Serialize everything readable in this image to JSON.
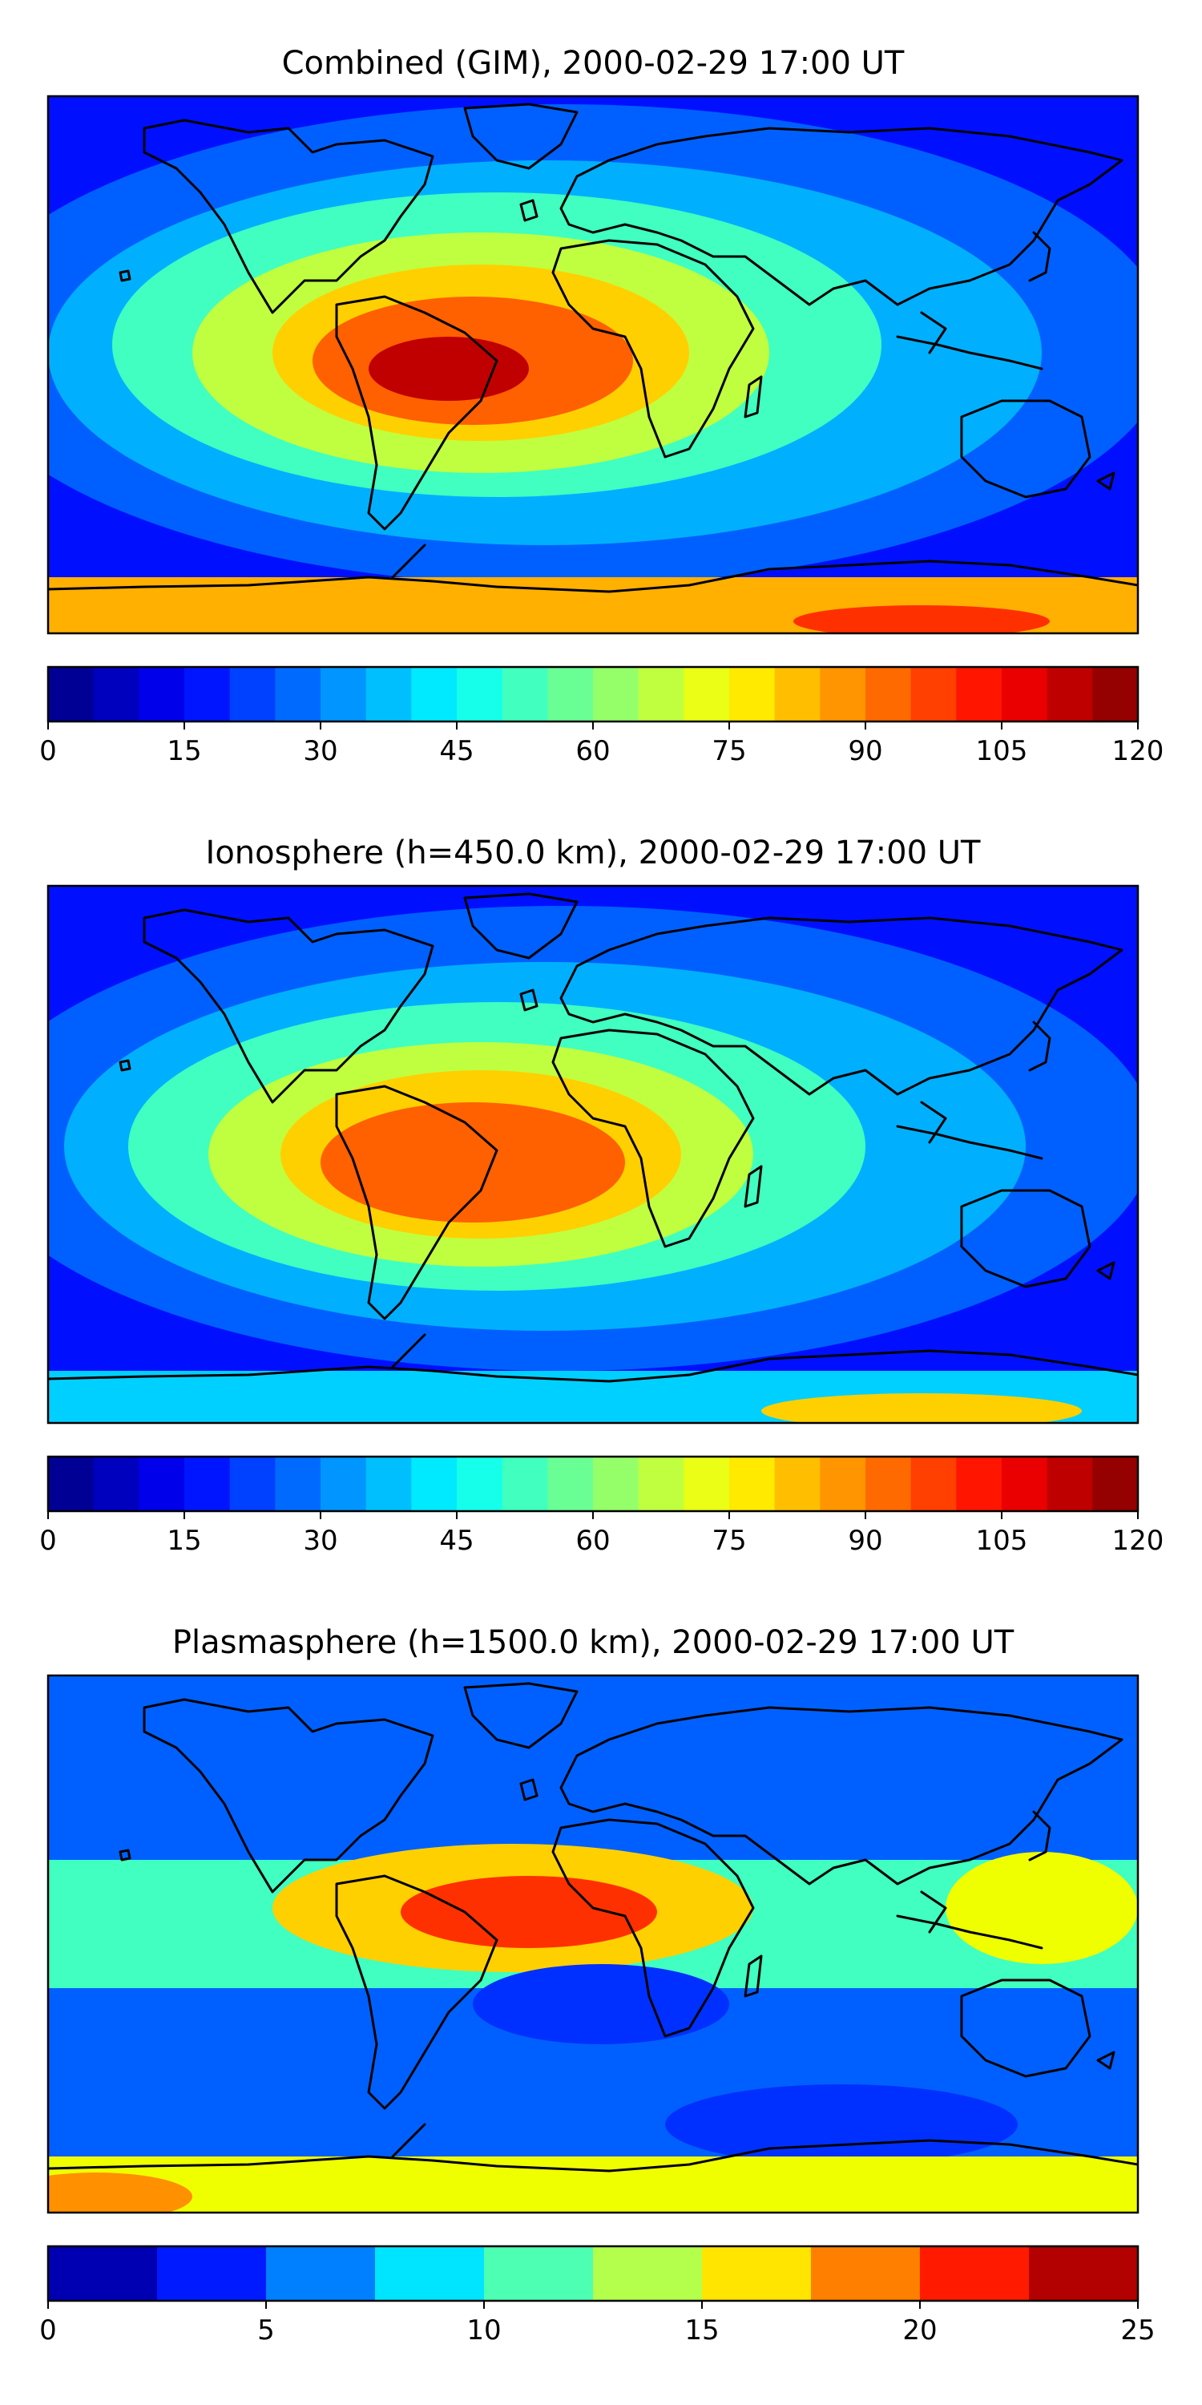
{
  "panels": [
    {
      "title": "Combined (GIM), 2000-02-29 17:00 UT",
      "colorbar": {
        "min": 0,
        "max": 120,
        "step": 5,
        "ticks": [
          "0",
          "15",
          "30",
          "45",
          "60",
          "75",
          "90",
          "105",
          "120"
        ]
      }
    },
    {
      "title": "Ionosphere  (h=450.0 km), 2000-02-29 17:00 UT",
      "colorbar": {
        "min": 0,
        "max": 120,
        "step": 5,
        "ticks": [
          "0",
          "15",
          "30",
          "45",
          "60",
          "75",
          "90",
          "105",
          "120"
        ]
      }
    },
    {
      "title": "Plasmasphere (h=1500.0 km), 2000-02-29 17:00 UT",
      "colorbar": {
        "min": 0,
        "max": 25,
        "step": 2.5,
        "ticks": [
          "0",
          "5",
          "10",
          "15",
          "20",
          "25"
        ]
      }
    }
  ],
  "colormap": "jet"
}
